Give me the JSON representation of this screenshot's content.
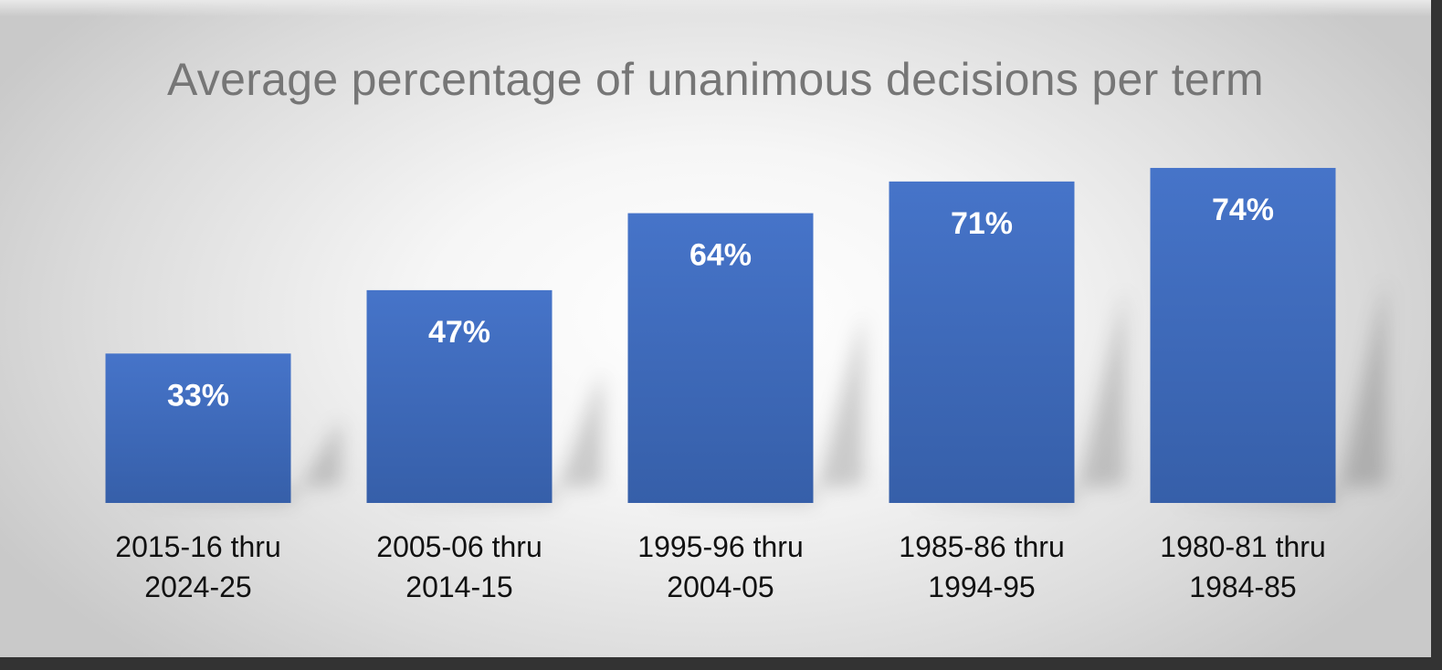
{
  "chart_data": {
    "type": "bar",
    "title": "Average percentage of unanimous decisions per term",
    "categories": [
      [
        "2015-16 thru",
        "2024-25"
      ],
      [
        "2005-06 thru",
        "2014-15"
      ],
      [
        "1995-96 thru",
        "2004-05"
      ],
      [
        "1985-86 thru",
        "1994-95"
      ],
      [
        "1980-81 thru",
        "1984-85"
      ]
    ],
    "values": [
      33,
      47,
      64,
      71,
      74
    ],
    "data_labels": [
      "33%",
      "47%",
      "64%",
      "71%",
      "74%"
    ],
    "ylim": [
      0,
      100
    ],
    "xlabel": "",
    "ylabel": "",
    "grid": false,
    "legend": "none",
    "bar_color": "#4472c4"
  }
}
